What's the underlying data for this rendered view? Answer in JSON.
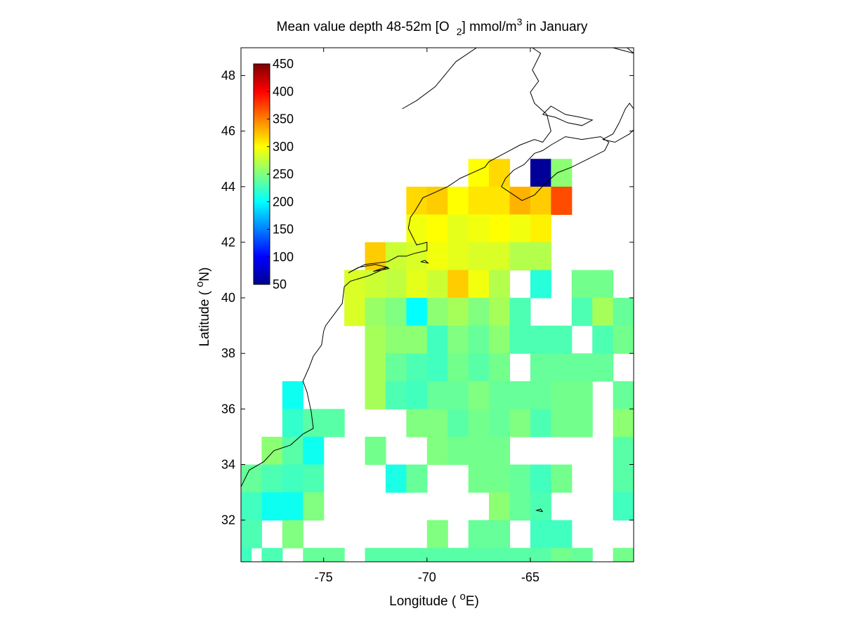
{
  "chart_data": {
    "type": "heatmap",
    "title_parts": {
      "a": "Mean value depth 48-52m [O",
      "sub": "2",
      "b": "] mmol/m",
      "sup": "3",
      "c": " in January"
    },
    "xlabel_parts": {
      "a": "Longitude ( ",
      "sup": "o",
      "b": "E)"
    },
    "ylabel_parts": {
      "a": "Latitude ( ",
      "sup": "o",
      "b": "N)"
    },
    "xlim": [
      -79.0,
      -60.0
    ],
    "ylim": [
      30.5,
      49.0
    ],
    "xticks": [
      -75,
      -70,
      -65
    ],
    "xtick_labels": [
      "-75",
      "-70",
      "-65"
    ],
    "yticks": [
      32,
      34,
      36,
      38,
      40,
      42,
      44,
      46,
      48
    ],
    "ytick_labels": [
      "32",
      "34",
      "36",
      "38",
      "40",
      "42",
      "44",
      "46",
      "48"
    ],
    "colorbar": {
      "colormap": "jet",
      "clim": [
        50,
        450
      ],
      "ticks": [
        50,
        100,
        150,
        200,
        250,
        300,
        350,
        400,
        450
      ],
      "tick_labels": [
        "50",
        "100",
        "150",
        "200",
        "250",
        "300",
        "350",
        "400",
        "450"
      ],
      "location": "inside top-left"
    },
    "cell_size_deg": 1.0,
    "cells": [
      [
        -67.5,
        44.5,
        300
      ],
      [
        -66.5,
        44.5,
        315
      ],
      [
        -64.5,
        44.5,
        60
      ],
      [
        -63.5,
        44.5,
        255
      ],
      [
        -70.5,
        43.5,
        315
      ],
      [
        -69.5,
        43.5,
        320
      ],
      [
        -68.5,
        43.5,
        300
      ],
      [
        -67.5,
        43.5,
        310
      ],
      [
        -66.5,
        43.5,
        310
      ],
      [
        -65.5,
        43.5,
        330
      ],
      [
        -64.5,
        43.5,
        320
      ],
      [
        -63.5,
        43.5,
        370
      ],
      [
        -70.5,
        42.5,
        295
      ],
      [
        -69.5,
        42.5,
        300
      ],
      [
        -68.5,
        42.5,
        290
      ],
      [
        -67.5,
        42.5,
        295
      ],
      [
        -66.5,
        42.5,
        300
      ],
      [
        -65.5,
        42.5,
        295
      ],
      [
        -64.5,
        42.5,
        305
      ],
      [
        -72.5,
        41.5,
        320
      ],
      [
        -71.5,
        41.5,
        280
      ],
      [
        -70.5,
        41.5,
        285
      ],
      [
        -69.5,
        41.5,
        295
      ],
      [
        -68.5,
        41.5,
        290
      ],
      [
        -67.5,
        41.5,
        285
      ],
      [
        -66.5,
        41.5,
        285
      ],
      [
        -65.5,
        41.5,
        270
      ],
      [
        -64.5,
        41.5,
        270
      ],
      [
        -73.5,
        40.5,
        285
      ],
      [
        -72.5,
        40.5,
        280
      ],
      [
        -71.5,
        40.5,
        275
      ],
      [
        -70.5,
        40.5,
        290
      ],
      [
        -69.5,
        40.5,
        280
      ],
      [
        -68.5,
        40.5,
        320
      ],
      [
        -67.5,
        40.5,
        295
      ],
      [
        -66.5,
        40.5,
        270
      ],
      [
        -64.5,
        40.5,
        215
      ],
      [
        -62.5,
        40.5,
        245
      ],
      [
        -61.5,
        40.5,
        245
      ],
      [
        -73.5,
        39.5,
        285
      ],
      [
        -72.5,
        39.5,
        260
      ],
      [
        -71.5,
        39.5,
        250
      ],
      [
        -70.5,
        39.5,
        200
      ],
      [
        -69.5,
        39.5,
        255
      ],
      [
        -68.5,
        39.5,
        265
      ],
      [
        -67.5,
        39.5,
        250
      ],
      [
        -66.5,
        39.5,
        265
      ],
      [
        -65.5,
        39.5,
        230
      ],
      [
        -62.5,
        39.5,
        230
      ],
      [
        -61.5,
        39.5,
        265
      ],
      [
        -60.5,
        39.5,
        240
      ],
      [
        -72.5,
        38.5,
        265
      ],
      [
        -71.5,
        38.5,
        255
      ],
      [
        -70.5,
        38.5,
        255
      ],
      [
        -69.5,
        38.5,
        225
      ],
      [
        -68.5,
        38.5,
        250
      ],
      [
        -67.5,
        38.5,
        240
      ],
      [
        -66.5,
        38.5,
        255
      ],
      [
        -65.5,
        38.5,
        230
      ],
      [
        -64.5,
        38.5,
        230
      ],
      [
        -63.5,
        38.5,
        230
      ],
      [
        -61.5,
        38.5,
        230
      ],
      [
        -60.5,
        38.5,
        245
      ],
      [
        -72.5,
        37.5,
        265
      ],
      [
        -71.5,
        37.5,
        240
      ],
      [
        -70.5,
        37.5,
        230
      ],
      [
        -69.5,
        37.5,
        225
      ],
      [
        -68.5,
        37.5,
        245
      ],
      [
        -67.5,
        37.5,
        235
      ],
      [
        -66.5,
        37.5,
        245
      ],
      [
        -64.5,
        37.5,
        240
      ],
      [
        -63.5,
        37.5,
        240
      ],
      [
        -62.5,
        37.5,
        240
      ],
      [
        -61.5,
        37.5,
        240
      ],
      [
        -76.5,
        36.5,
        205
      ],
      [
        -72.5,
        36.5,
        265
      ],
      [
        -71.5,
        36.5,
        230
      ],
      [
        -70.5,
        36.5,
        225
      ],
      [
        -69.5,
        36.5,
        240
      ],
      [
        -68.5,
        36.5,
        240
      ],
      [
        -67.5,
        36.5,
        250
      ],
      [
        -66.5,
        36.5,
        240
      ],
      [
        -65.5,
        36.5,
        240
      ],
      [
        -64.5,
        36.5,
        240
      ],
      [
        -63.5,
        36.5,
        245
      ],
      [
        -62.5,
        36.5,
        245
      ],
      [
        -60.5,
        36.5,
        240
      ],
      [
        -76.5,
        35.5,
        220
      ],
      [
        -75.5,
        35.5,
        235
      ],
      [
        -74.5,
        35.5,
        235
      ],
      [
        -70.5,
        35.5,
        250
      ],
      [
        -69.5,
        35.5,
        250
      ],
      [
        -68.5,
        35.5,
        235
      ],
      [
        -67.5,
        35.5,
        245
      ],
      [
        -66.5,
        35.5,
        240
      ],
      [
        -65.5,
        35.5,
        250
      ],
      [
        -64.5,
        35.5,
        230
      ],
      [
        -63.5,
        35.5,
        245
      ],
      [
        -62.5,
        35.5,
        245
      ],
      [
        -60.5,
        35.5,
        255
      ],
      [
        -77.5,
        34.5,
        255
      ],
      [
        -76.5,
        34.5,
        235
      ],
      [
        -75.5,
        34.5,
        205
      ],
      [
        -72.5,
        34.5,
        245
      ],
      [
        -69.5,
        34.5,
        250
      ],
      [
        -68.5,
        34.5,
        245
      ],
      [
        -67.5,
        34.5,
        245
      ],
      [
        -66.5,
        34.5,
        245
      ],
      [
        -60.5,
        34.5,
        235
      ],
      [
        -78.5,
        33.5,
        240
      ],
      [
        -77.5,
        33.5,
        230
      ],
      [
        -76.5,
        33.5,
        225
      ],
      [
        -75.5,
        33.5,
        230
      ],
      [
        -71.5,
        33.5,
        210
      ],
      [
        -70.5,
        33.5,
        240
      ],
      [
        -67.5,
        33.5,
        245
      ],
      [
        -66.5,
        33.5,
        245
      ],
      [
        -65.5,
        33.5,
        240
      ],
      [
        -64.5,
        33.5,
        225
      ],
      [
        -63.5,
        33.5,
        245
      ],
      [
        -60.5,
        33.5,
        235
      ],
      [
        -79.0,
        32.5,
        245
      ],
      [
        -78.5,
        32.5,
        225
      ],
      [
        -77.5,
        32.5,
        205
      ],
      [
        -76.5,
        32.5,
        205
      ],
      [
        -75.5,
        32.5,
        250
      ],
      [
        -66.5,
        32.5,
        255
      ],
      [
        -65.5,
        32.5,
        240
      ],
      [
        -64.5,
        32.5,
        230
      ],
      [
        -60.5,
        32.5,
        225
      ],
      [
        -79.0,
        31.5,
        230
      ],
      [
        -78.5,
        31.5,
        230
      ],
      [
        -76.5,
        31.5,
        250
      ],
      [
        -69.5,
        31.5,
        250
      ],
      [
        -67.5,
        31.5,
        240
      ],
      [
        -66.5,
        31.5,
        240
      ],
      [
        -64.5,
        31.5,
        225
      ],
      [
        -63.5,
        31.5,
        225
      ],
      [
        -79.0,
        30.5,
        225
      ],
      [
        -77.5,
        30.5,
        230
      ],
      [
        -75.5,
        30.5,
        240
      ],
      [
        -74.5,
        30.5,
        240
      ],
      [
        -72.5,
        30.5,
        235
      ],
      [
        -71.5,
        30.5,
        235
      ],
      [
        -70.5,
        30.5,
        235
      ],
      [
        -69.5,
        30.5,
        235
      ],
      [
        -68.5,
        30.5,
        235
      ],
      [
        -67.5,
        30.5,
        235
      ],
      [
        -66.5,
        30.5,
        235
      ],
      [
        -65.5,
        30.5,
        235
      ],
      [
        -64.5,
        30.5,
        235
      ],
      [
        -63.5,
        30.5,
        245
      ],
      [
        -62.5,
        30.5,
        240
      ],
      [
        -60.5,
        30.5,
        245
      ]
    ],
    "coastlines": [
      [
        [
          -79,
          33.2
        ],
        [
          -78.6,
          33.8
        ],
        [
          -77.9,
          34.1
        ],
        [
          -77.4,
          34.5
        ],
        [
          -76.6,
          34.7
        ],
        [
          -76.0,
          35.1
        ],
        [
          -75.5,
          35.3
        ],
        [
          -75.6,
          35.9
        ],
        [
          -75.8,
          36.6
        ],
        [
          -76.0,
          37.0
        ],
        [
          -75.7,
          37.5
        ],
        [
          -75.5,
          37.9
        ],
        [
          -75.1,
          38.3
        ],
        [
          -75.0,
          38.8
        ],
        [
          -74.9,
          39.0
        ],
        [
          -74.6,
          39.3
        ],
        [
          -74.1,
          39.8
        ],
        [
          -74.0,
          40.4
        ],
        [
          -73.7,
          40.6
        ],
        [
          -72.8,
          40.8
        ],
        [
          -71.9,
          41.1
        ],
        [
          -72.5,
          41.2
        ],
        [
          -73.3,
          41.1
        ],
        [
          -73.8,
          40.9
        ],
        [
          -73.0,
          41.2
        ],
        [
          -71.9,
          41.3
        ],
        [
          -71.4,
          41.5
        ],
        [
          -71.0,
          41.5
        ],
        [
          -70.6,
          41.6
        ],
        [
          -70.0,
          41.7
        ],
        [
          -70.0,
          42.0
        ],
        [
          -70.5,
          41.9
        ],
        [
          -70.7,
          42.2
        ],
        [
          -70.9,
          42.5
        ],
        [
          -70.8,
          42.9
        ],
        [
          -70.6,
          43.1
        ],
        [
          -70.2,
          43.6
        ],
        [
          -69.6,
          43.8
        ],
        [
          -69.0,
          44.0
        ],
        [
          -68.4,
          44.3
        ],
        [
          -67.8,
          44.5
        ],
        [
          -67.2,
          44.7
        ],
        [
          -67.0,
          44.9
        ],
        [
          -66.5,
          45.1
        ],
        [
          -66.0,
          45.3
        ],
        [
          -65.5,
          45.5
        ],
        [
          -64.8,
          45.7
        ],
        [
          -64.4,
          45.6
        ],
        [
          -64.0,
          46.0
        ],
        [
          -64.2,
          46.6
        ],
        [
          -64.8,
          47.0
        ],
        [
          -65.0,
          47.4
        ],
        [
          -64.6,
          47.8
        ],
        [
          -64.9,
          48.2
        ],
        [
          -64.5,
          48.8
        ],
        [
          -65.3,
          49.2
        ],
        [
          -66.4,
          49.1
        ],
        [
          -67.6,
          49.0
        ],
        [
          -68.6,
          48.5
        ],
        [
          -69.6,
          47.6
        ],
        [
          -70.5,
          47.1
        ],
        [
          -71.2,
          46.8
        ]
      ],
      [
        [
          -66.4,
          44.0
        ],
        [
          -65.8,
          43.7
        ],
        [
          -65.4,
          43.5
        ],
        [
          -64.8,
          43.7
        ],
        [
          -64.3,
          44.1
        ],
        [
          -63.7,
          44.5
        ],
        [
          -63.0,
          44.7
        ],
        [
          -62.2,
          45.0
        ],
        [
          -61.4,
          45.3
        ],
        [
          -61.2,
          45.6
        ],
        [
          -61.6,
          45.8
        ],
        [
          -62.5,
          45.7
        ],
        [
          -63.3,
          45.8
        ],
        [
          -64.0,
          45.5
        ],
        [
          -64.4,
          45.3
        ],
        [
          -64.8,
          45.2
        ],
        [
          -65.3,
          44.8
        ],
        [
          -65.8,
          44.6
        ],
        [
          -66.2,
          44.3
        ],
        [
          -66.4,
          44.0
        ]
      ],
      [
        [
          -61.5,
          45.7
        ],
        [
          -61.0,
          45.9
        ],
        [
          -60.7,
          46.3
        ],
        [
          -60.4,
          46.8
        ],
        [
          -60.2,
          47.0
        ],
        [
          -60.0,
          46.8
        ],
        [
          -59.8,
          46.2
        ],
        [
          -60.2,
          45.9
        ],
        [
          -60.9,
          45.6
        ],
        [
          -61.5,
          45.7
        ]
      ],
      [
        [
          -64.4,
          46.6
        ],
        [
          -63.8,
          46.5
        ],
        [
          -63.2,
          46.3
        ],
        [
          -62.5,
          46.2
        ],
        [
          -62.0,
          46.4
        ],
        [
          -62.6,
          46.5
        ],
        [
          -63.3,
          46.6
        ],
        [
          -64.0,
          46.9
        ],
        [
          -64.4,
          46.6
        ]
      ],
      [
        [
          -60.0,
          48.8
        ],
        [
          -61.0,
          49.0
        ],
        [
          -62.2,
          49.3
        ],
        [
          -63.5,
          49.5
        ],
        [
          -64.5,
          49.8
        ],
        [
          -63.5,
          49.8
        ],
        [
          -62.0,
          49.6
        ],
        [
          -60.8,
          49.3
        ],
        [
          -60.0,
          48.8
        ]
      ],
      [
        [
          -72.6,
          40.95
        ],
        [
          -72.0,
          41.1
        ],
        [
          -71.85,
          41.05
        ],
        [
          -72.6,
          40.95
        ]
      ],
      [
        [
          -70.3,
          41.3
        ],
        [
          -69.95,
          41.25
        ],
        [
          -70.1,
          41.35
        ],
        [
          -70.3,
          41.3
        ]
      ],
      [
        [
          -64.4,
          32.3
        ],
        [
          -64.7,
          32.35
        ],
        [
          -64.5,
          32.4
        ],
        [
          -64.4,
          32.3
        ]
      ]
    ]
  }
}
